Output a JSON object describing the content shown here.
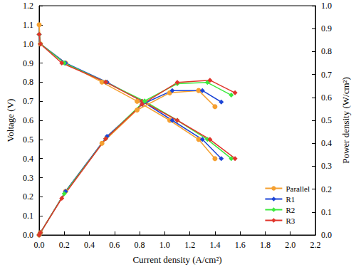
{
  "chart_data": {
    "type": "line",
    "x_label": "Current density (A/cm²)",
    "y_label": "Voltage (V)",
    "y2_label": "Power density (W/cm²)",
    "xlim": [
      0,
      2.2
    ],
    "xticks": [
      {
        "value": 0,
        "label": "0.0"
      },
      {
        "value": 0.2,
        "label": "0.2"
      },
      {
        "value": 0.4,
        "label": "0.4"
      },
      {
        "value": 0.6,
        "label": "0.6"
      },
      {
        "value": 0.8,
        "label": "0.8"
      },
      {
        "value": 1,
        "label": "1.0"
      },
      {
        "value": 1.2,
        "label": "1.2"
      },
      {
        "value": 1.4,
        "label": "1.4"
      },
      {
        "value": 1.6,
        "label": "1.6"
      },
      {
        "value": 1.8,
        "label": "1.8"
      },
      {
        "value": 2,
        "label": "2.0"
      },
      {
        "value": 2.2,
        "label": "2.2"
      }
    ],
    "ylim": [
      0,
      1.2
    ],
    "yticks": [
      {
        "value": 0,
        "label": "0.0"
      },
      {
        "value": 0.1,
        "label": "0.1"
      },
      {
        "value": 0.2,
        "label": "0.2"
      },
      {
        "value": 0.3,
        "label": "0.3"
      },
      {
        "value": 0.4,
        "label": "0.4"
      },
      {
        "value": 0.5,
        "label": "0.5"
      },
      {
        "value": 0.6,
        "label": "0.6"
      },
      {
        "value": 0.7,
        "label": "0.7"
      },
      {
        "value": 0.8,
        "label": "0.8"
      },
      {
        "value": 0.9,
        "label": "0.9"
      },
      {
        "value": 1,
        "label": "1.0"
      },
      {
        "value": 1.1,
        "label": "1.1"
      },
      {
        "value": 1.2,
        "label": "1.2"
      }
    ],
    "y2lim": [
      0,
      1
    ],
    "y2ticks": [
      {
        "value": 0,
        "label": "0.0"
      },
      {
        "value": 0.1,
        "label": "0.1"
      },
      {
        "value": 0.2,
        "label": "0.2"
      },
      {
        "value": 0.3,
        "label": "0.3"
      },
      {
        "value": 0.4,
        "label": "0.4"
      },
      {
        "value": 0.5,
        "label": "0.5"
      },
      {
        "value": 0.6,
        "label": "0.6"
      },
      {
        "value": 0.7,
        "label": "0.7"
      },
      {
        "value": 0.8,
        "label": "0.8"
      },
      {
        "value": 0.9,
        "label": "0.9"
      },
      {
        "value": 1,
        "label": "1.0"
      }
    ],
    "grid": false,
    "legend": "lower right",
    "series": [
      {
        "name": "Parallel",
        "color": "#f5a031",
        "marker": "circle",
        "x": [
          0,
          0.01,
          0.21,
          0.5,
          0.78,
          1.04,
          1.27,
          1.4
        ],
        "values": [
          1.1,
          1.0,
          0.9,
          0.8,
          0.7,
          0.6,
          0.5,
          0.4
        ]
      },
      {
        "name": "R1",
        "color": "#1c45d6",
        "marker": "diamond",
        "x": [
          0,
          0.01,
          0.21,
          0.54,
          0.82,
          1.06,
          1.3,
          1.45
        ],
        "values": [
          1.05,
          1.0,
          0.9,
          0.8,
          0.7,
          0.6,
          0.5,
          0.4
        ]
      },
      {
        "name": "R2",
        "color": "#3de83d",
        "marker": "diamond",
        "x": [
          0,
          0.01,
          0.2,
          0.53,
          0.84,
          1.1,
          1.34,
          1.53
        ],
        "values": [
          1.05,
          1.0,
          0.9,
          0.8,
          0.7,
          0.6,
          0.5,
          0.4
        ]
      },
      {
        "name": "R3",
        "color": "#e0342b",
        "marker": "diamond",
        "x": [
          0,
          0.01,
          0.18,
          0.53,
          0.82,
          1.1,
          1.36,
          1.56
        ],
        "values": [
          1.05,
          1.0,
          0.9,
          0.8,
          0.7,
          0.6,
          0.5,
          0.4
        ]
      },
      {
        "name": "Parallel",
        "color": "#f5a031",
        "marker": "circle",
        "axis": "y2",
        "x": [
          0,
          0.01,
          0.21,
          0.5,
          0.78,
          1.04,
          1.27,
          1.4
        ],
        "values": [
          0,
          0.01,
          0.19,
          0.4,
          0.545,
          0.62,
          0.63,
          0.56
        ]
      },
      {
        "name": "R1",
        "color": "#1c45d6",
        "marker": "diamond",
        "axis": "y2",
        "x": [
          0,
          0.01,
          0.21,
          0.54,
          0.82,
          1.06,
          1.3,
          1.45
        ],
        "values": [
          0,
          0.01,
          0.19,
          0.43,
          0.57,
          0.63,
          0.63,
          0.58
        ]
      },
      {
        "name": "R2",
        "color": "#3de83d",
        "marker": "diamond",
        "axis": "y2",
        "x": [
          0,
          0.01,
          0.2,
          0.53,
          0.84,
          1.1,
          1.34,
          1.53
        ],
        "values": [
          0,
          0.01,
          0.18,
          0.42,
          0.585,
          0.66,
          0.665,
          0.61
        ]
      },
      {
        "name": "R3",
        "color": "#e0342b",
        "marker": "diamond",
        "axis": "y2",
        "x": [
          0,
          0.01,
          0.18,
          0.53,
          0.82,
          1.1,
          1.36,
          1.56
        ],
        "values": [
          0,
          0.01,
          0.16,
          0.42,
          0.57,
          0.665,
          0.675,
          0.62
        ]
      }
    ]
  }
}
